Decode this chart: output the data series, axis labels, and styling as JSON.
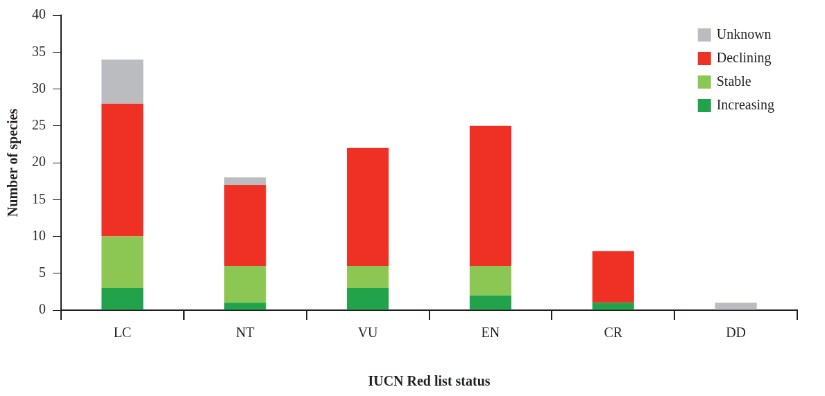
{
  "chart_data": {
    "type": "bar",
    "stacked": true,
    "xlabel": "IUCN Red list status",
    "ylabel": "Number of species",
    "categories": [
      "LC",
      "NT",
      "VU",
      "EN",
      "CR",
      "DD"
    ],
    "series": [
      {
        "name": "Increasing",
        "color": "#21a24b",
        "values": [
          3,
          1,
          3,
          2,
          1,
          0
        ]
      },
      {
        "name": "Stable",
        "color": "#8dc753",
        "values": [
          7,
          5,
          3,
          4,
          0,
          0
        ]
      },
      {
        "name": "Declining",
        "color": "#ee3124",
        "values": [
          18,
          11,
          16,
          19,
          7,
          0
        ]
      },
      {
        "name": "Unknown",
        "color": "#bbbcbf",
        "values": [
          6,
          1,
          0,
          0,
          0,
          1
        ]
      }
    ],
    "ylim": [
      0,
      40
    ],
    "yticks": [
      0,
      5,
      10,
      15,
      20,
      25,
      30,
      35,
      40
    ],
    "grid": false,
    "legend": "top right"
  }
}
